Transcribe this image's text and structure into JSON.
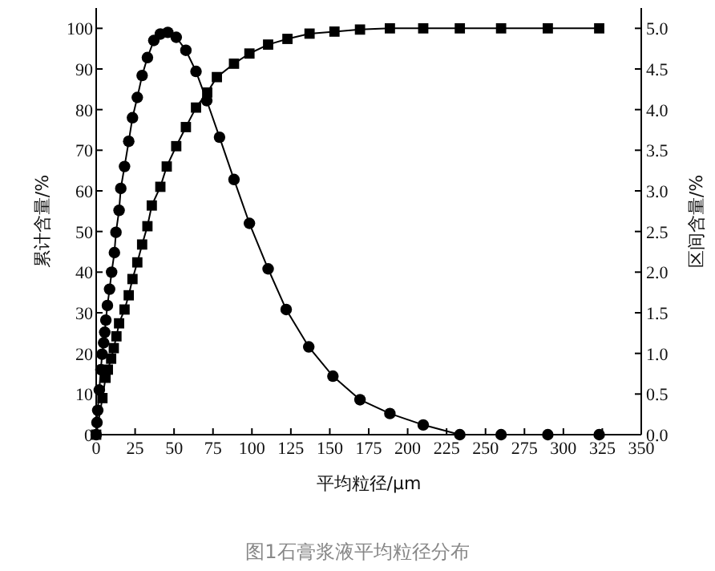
{
  "chart_data": {
    "type": "line",
    "xlabel": "平均粒径/μm",
    "ylabel": "累计含量/%",
    "y2label": "区间含量/%",
    "annotations": [
      "图1石膏浆液平均粒径分布"
    ],
    "xlim": [
      0,
      350
    ],
    "xticks": [
      0,
      25,
      50,
      75,
      100,
      125,
      150,
      175,
      200,
      225,
      250,
      275,
      300,
      325,
      350
    ],
    "ylim": [
      0,
      105
    ],
    "yticks": [
      0,
      10,
      20,
      30,
      40,
      50,
      60,
      70,
      80,
      90,
      100
    ],
    "y2lim": [
      0,
      5.25
    ],
    "y2ticks": [
      {
        "value": 0,
        "label": "0.0"
      },
      0.5,
      {
        "value": 1,
        "label": "1.0"
      },
      1.5,
      {
        "value": 2,
        "label": "2.0"
      },
      2.5,
      {
        "value": 3,
        "label": "3.0"
      },
      3.5,
      {
        "value": 4,
        "label": "4.0"
      },
      4.5,
      {
        "value": 5,
        "label": "5.0"
      }
    ],
    "grid": false,
    "series": [
      {
        "color": "#000000",
        "marker": "square",
        "x": [
          0,
          4,
          6,
          7.5,
          9.6,
          11.3,
          13,
          14.7,
          18.2,
          20.9,
          23.3,
          26.4,
          29.5,
          32.9,
          35.7,
          41.2,
          45.3,
          51.4,
          57.6,
          64.1,
          71.3,
          77.5,
          88.5,
          98.4,
          110.4,
          122.8,
          137,
          153,
          169.4,
          188.6,
          210,
          233.5,
          260,
          290,
          323
        ],
        "values": [
          0,
          9,
          14,
          16,
          18.7,
          21.3,
          24.2,
          27.4,
          30.8,
          34.3,
          38.3,
          42.4,
          46.8,
          51.3,
          56.4,
          61,
          66,
          71,
          75.7,
          80.5,
          84.2,
          88,
          91.3,
          93.8,
          96,
          97.4,
          98.7,
          99.2,
          99.7,
          100,
          100,
          100,
          100,
          100,
          100
        ]
      },
      {
        "color": "#000000",
        "marker": "circle",
        "axis": "y2",
        "x": [
          0,
          0.5,
          1,
          2,
          3,
          3.8,
          4.8,
          5.5,
          6.2,
          7.2,
          8.6,
          9.9,
          11.7,
          12.7,
          14.7,
          15.8,
          18.2,
          20.9,
          23.3,
          26.4,
          29.5,
          32.9,
          37,
          41.2,
          46,
          51.4,
          57.6,
          64.1,
          71,
          79.2,
          88.5,
          98.4,
          110.4,
          122,
          136.5,
          152,
          169.4,
          188.6,
          210,
          233.5,
          260,
          290,
          323
        ],
        "values": [
          0,
          0.15,
          0.3,
          0.55,
          0.8,
          0.99,
          1.13,
          1.26,
          1.41,
          1.59,
          1.79,
          2.0,
          2.24,
          2.49,
          2.76,
          3.03,
          3.3,
          3.61,
          3.9,
          4.15,
          4.42,
          4.64,
          4.85,
          4.93,
          4.95,
          4.89,
          4.73,
          4.47,
          4.11,
          3.66,
          3.14,
          2.6,
          2.04,
          1.54,
          1.08,
          0.72,
          0.43,
          0.26,
          0.12,
          0,
          0,
          0,
          0
        ]
      }
    ]
  }
}
